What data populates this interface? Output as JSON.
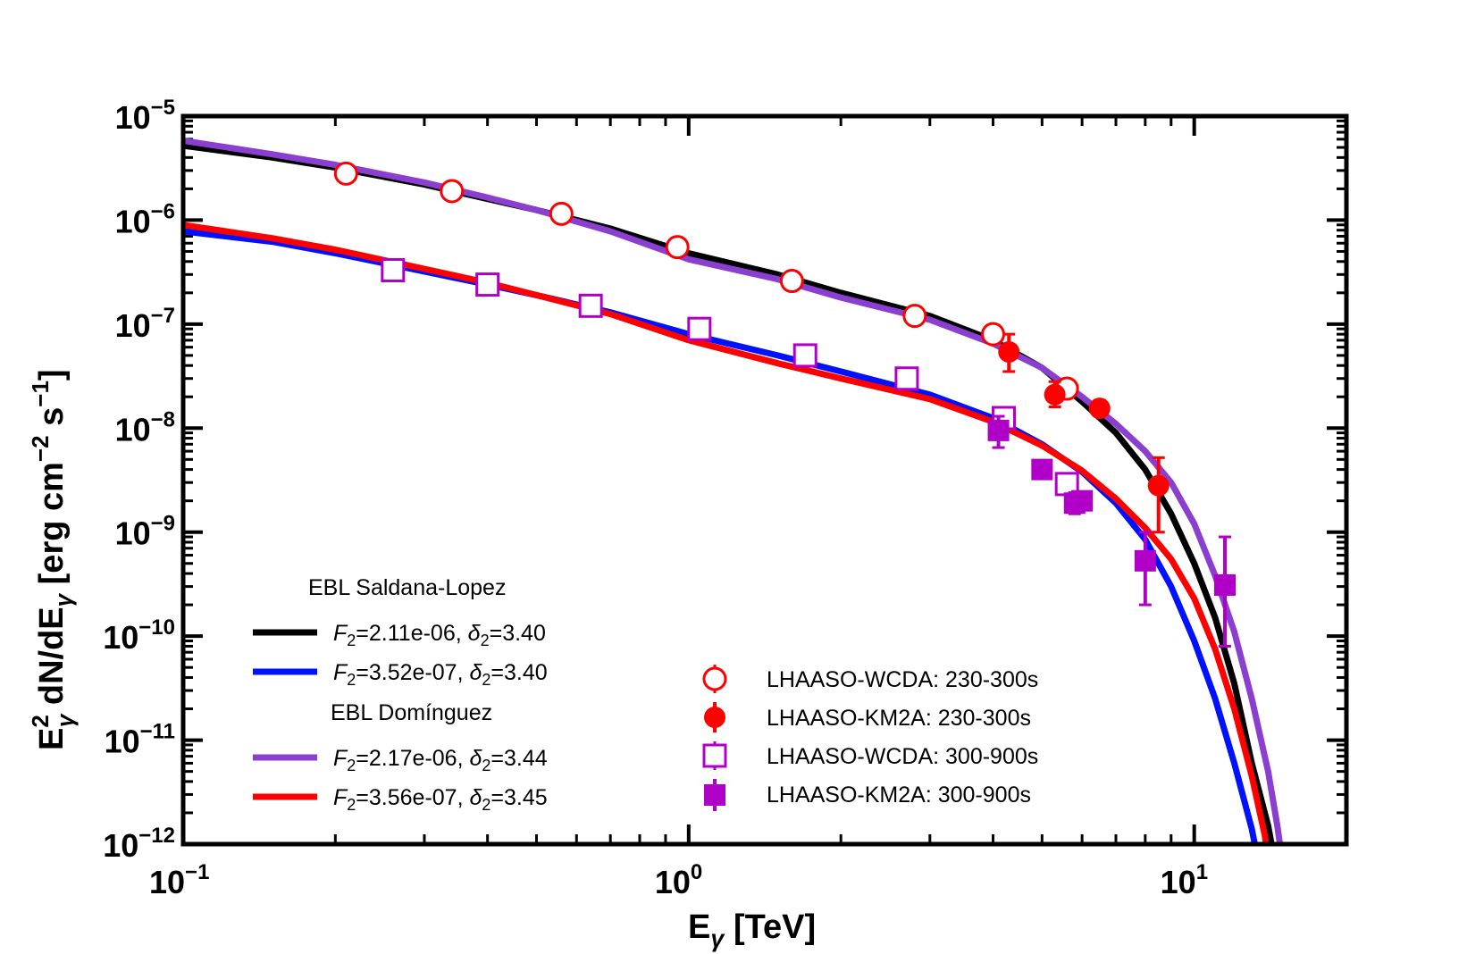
{
  "chart_data": {
    "type": "line",
    "xscale": "log",
    "yscale": "log",
    "xlim": [
      0.1,
      20
    ],
    "ylim": [
      1e-12,
      1e-05
    ],
    "xlabel": "E_γ [TeV]",
    "ylabel": "E_γ^2 dN/dE_γ [erg cm^-2 s^-1]",
    "x_ticks": [
      {
        "value": 0.1,
        "base": "10",
        "exp": "−1"
      },
      {
        "value": 1,
        "base": "10",
        "exp": "0"
      },
      {
        "value": 10,
        "base": "10",
        "exp": "1"
      }
    ],
    "y_ticks": [
      {
        "value": 1e-05,
        "base": "10",
        "exp": "−5"
      },
      {
        "value": 1e-06,
        "base": "10",
        "exp": "−6"
      },
      {
        "value": 1e-07,
        "base": "10",
        "exp": "−7"
      },
      {
        "value": 1e-08,
        "base": "10",
        "exp": "−8"
      },
      {
        "value": 1e-09,
        "base": "10",
        "exp": "−9"
      },
      {
        "value": 1e-10,
        "base": "10",
        "exp": "−10"
      },
      {
        "value": 1e-11,
        "base": "10",
        "exp": "−11"
      },
      {
        "value": 1e-12,
        "base": "10",
        "exp": "−12"
      }
    ],
    "legend_models": {
      "group1_title": "EBL Saldana-Lopez",
      "group2_title": "EBL Domínguez"
    },
    "model_series": [
      {
        "id": "black",
        "name": "F2=2.11e-06, δ2=3.40",
        "F": "2.11e-06",
        "delta": "3.40",
        "color": "#000000",
        "points": [
          [
            0.1,
            5.2e-06
          ],
          [
            0.15,
            4e-06
          ],
          [
            0.2,
            3.2e-06
          ],
          [
            0.3,
            2.2e-06
          ],
          [
            0.4,
            1.6e-06
          ],
          [
            0.5,
            1.25e-06
          ],
          [
            0.7,
            8.3e-07
          ],
          [
            1,
            4.8e-07
          ],
          [
            1.5,
            3e-07
          ],
          [
            2,
            2e-07
          ],
          [
            3,
            1.2e-07
          ],
          [
            4,
            7e-08
          ],
          [
            5,
            3.8e-08
          ],
          [
            6,
            1.8e-08
          ],
          [
            7,
            9e-09
          ],
          [
            8,
            4e-09
          ],
          [
            9,
            1.5e-09
          ],
          [
            10,
            5e-10
          ],
          [
            11,
            1.5e-10
          ],
          [
            12,
            3.5e-11
          ],
          [
            13,
            6e-12
          ],
          [
            14,
            1.5e-12
          ],
          [
            14.5,
            6e-13
          ]
        ]
      },
      {
        "id": "blue",
        "name": "F2=3.52e-07, δ2=3.40",
        "F": "3.52e-07",
        "delta": "3.40",
        "color": "#0011ff",
        "points": [
          [
            0.1,
            7.8e-07
          ],
          [
            0.15,
            6.2e-07
          ],
          [
            0.2,
            4.8e-07
          ],
          [
            0.3,
            3.2e-07
          ],
          [
            0.4,
            2.4e-07
          ],
          [
            0.5,
            1.9e-07
          ],
          [
            0.7,
            1.3e-07
          ],
          [
            1,
            8e-08
          ],
          [
            1.5,
            5e-08
          ],
          [
            2,
            3.5e-08
          ],
          [
            3,
            2.1e-08
          ],
          [
            4,
            1.25e-08
          ],
          [
            5,
            7e-09
          ],
          [
            6,
            3.8e-09
          ],
          [
            7,
            1.9e-09
          ],
          [
            8,
            8.5e-10
          ],
          [
            9,
            3e-10
          ],
          [
            10,
            9e-11
          ],
          [
            11,
            2.5e-11
          ],
          [
            12,
            6e-12
          ],
          [
            13,
            1.4e-12
          ],
          [
            13.3,
            8e-13
          ]
        ]
      },
      {
        "id": "purple",
        "name": "F2=2.17e-06, δ2=3.44",
        "F": "2.17e-06",
        "delta": "3.44",
        "color": "#8b3fd1",
        "points": [
          [
            0.1,
            5.8e-06
          ],
          [
            0.15,
            4.3e-06
          ],
          [
            0.2,
            3.4e-06
          ],
          [
            0.3,
            2.3e-06
          ],
          [
            0.4,
            1.65e-06
          ],
          [
            0.5,
            1.25e-06
          ],
          [
            0.7,
            7.8e-07
          ],
          [
            1,
            4.2e-07
          ],
          [
            1.5,
            2.7e-07
          ],
          [
            2,
            1.8e-07
          ],
          [
            3,
            1.1e-07
          ],
          [
            4,
            6.5e-08
          ],
          [
            5,
            3.8e-08
          ],
          [
            6,
            2e-08
          ],
          [
            7,
            1.1e-08
          ],
          [
            8,
            6e-09
          ],
          [
            9,
            3e-09
          ],
          [
            10,
            1.2e-09
          ],
          [
            11,
            3.8e-10
          ],
          [
            12,
            1.1e-10
          ],
          [
            13,
            2.5e-11
          ],
          [
            14,
            5e-12
          ],
          [
            14.6,
            1.5e-12
          ],
          [
            15,
            6e-13
          ]
        ]
      },
      {
        "id": "red",
        "name": "F2=3.56e-07, δ2=3.45",
        "F": "3.56e-07",
        "delta": "3.45",
        "color": "#ff0000",
        "points": [
          [
            0.1,
            9e-07
          ],
          [
            0.15,
            6.7e-07
          ],
          [
            0.2,
            5.2e-07
          ],
          [
            0.3,
            3.4e-07
          ],
          [
            0.4,
            2.5e-07
          ],
          [
            0.5,
            1.9e-07
          ],
          [
            0.7,
            1.25e-07
          ],
          [
            1,
            7e-08
          ],
          [
            1.5,
            4.2e-08
          ],
          [
            2,
            3e-08
          ],
          [
            3,
            1.9e-08
          ],
          [
            4,
            1.15e-08
          ],
          [
            5,
            6.8e-09
          ],
          [
            6,
            3.9e-09
          ],
          [
            7,
            2.1e-09
          ],
          [
            8,
            1.1e-09
          ],
          [
            9,
            5.5e-10
          ],
          [
            10,
            2.3e-10
          ],
          [
            11,
            7.5e-11
          ],
          [
            12,
            2e-11
          ],
          [
            13,
            4.5e-12
          ],
          [
            13.8,
            1.2e-12
          ],
          [
            14,
            7e-13
          ]
        ]
      }
    ],
    "data_series": [
      {
        "id": "wcda-230",
        "name": "LHAASO-WCDA: 230-300s",
        "marker": "open-circle",
        "color": "#ff0000",
        "points": [
          {
            "x": 0.21,
            "y": 2.8e-06
          },
          {
            "x": 0.34,
            "y": 1.9e-06
          },
          {
            "x": 0.56,
            "y": 1.15e-06
          },
          {
            "x": 0.95,
            "y": 5.5e-07
          },
          {
            "x": 1.6,
            "y": 2.6e-07
          },
          {
            "x": 2.8,
            "y": 1.2e-07
          },
          {
            "x": 4.0,
            "y": 8e-08
          },
          {
            "x": 5.6,
            "y": 2.4e-08
          }
        ]
      },
      {
        "id": "km2a-230",
        "name": "LHAASO-KM2A: 230-300s",
        "marker": "filled-circle",
        "color": "#ff0000",
        "points": [
          {
            "x": 4.3,
            "y": 5.4e-08,
            "ylo": 3.5e-08,
            "yhi": 8e-08
          },
          {
            "x": 5.3,
            "y": 2.1e-08,
            "ylo": 1.6e-08,
            "yhi": 2.8e-08
          },
          {
            "x": 6.5,
            "y": 1.55e-08,
            "ylo": 1.3e-08,
            "yhi": 1.85e-08
          },
          {
            "x": 8.5,
            "y": 2.8e-09,
            "ylo": 1e-09,
            "yhi": 5.2e-09
          }
        ]
      },
      {
        "id": "wcda-300",
        "name": "LHAASO-WCDA: 300-900s",
        "marker": "open-square",
        "color": "#b000c8",
        "points": [
          {
            "x": 0.26,
            "y": 3.3e-07
          },
          {
            "x": 0.4,
            "y": 2.4e-07
          },
          {
            "x": 0.64,
            "y": 1.5e-07
          },
          {
            "x": 1.05,
            "y": 9e-08
          },
          {
            "x": 1.7,
            "y": 5e-08
          },
          {
            "x": 2.7,
            "y": 3e-08
          },
          {
            "x": 4.2,
            "y": 1.25e-08
          },
          {
            "x": 5.6,
            "y": 2.9e-09
          }
        ]
      },
      {
        "id": "km2a-300",
        "name": "LHAASO-KM2A: 300-900s",
        "marker": "filled-square",
        "color": "#b000c8",
        "points": [
          {
            "x": 4.1,
            "y": 9.5e-09,
            "ylo": 6.5e-09,
            "yhi": 1.3e-08
          },
          {
            "x": 5.0,
            "y": 4e-09,
            "ylo": 3.3e-09,
            "yhi": 4.7e-09
          },
          {
            "x": 5.8,
            "y": 1.9e-09,
            "ylo": 1.5e-09,
            "yhi": 2.4e-09
          },
          {
            "x": 6.0,
            "y": 2e-09,
            "ylo": 1.7e-09,
            "yhi": 2.4e-09
          },
          {
            "x": 8.0,
            "y": 5.3e-10,
            "ylo": 2e-10,
            "yhi": 1e-09
          },
          {
            "x": 11.5,
            "y": 3.1e-10,
            "ylo": 8e-11,
            "yhi": 9e-10
          }
        ]
      }
    ]
  }
}
